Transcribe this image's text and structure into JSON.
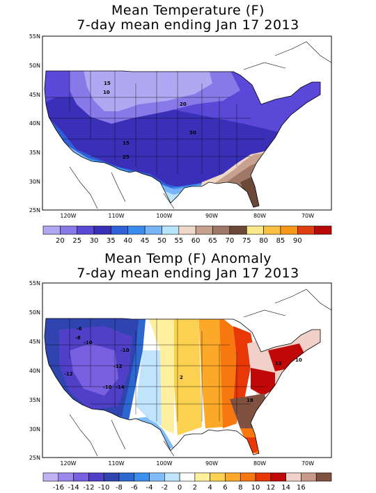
{
  "panels": [
    {
      "title_line1": "Mean Temperature (F)",
      "title_line2": "7-day mean ending Jan 17 2013",
      "lat_labels": [
        "55N",
        "50N",
        "45N",
        "40N",
        "35N",
        "30N",
        "25N"
      ],
      "lon_labels": [
        "120W",
        "110W",
        "100W",
        "90W",
        "80W",
        "70W"
      ],
      "contour_labels": [
        "15",
        "10",
        "20",
        "30",
        "15",
        "25"
      ],
      "colorbar": {
        "labels": [
          "20",
          "25",
          "30",
          "35",
          "40",
          "45",
          "50",
          "55",
          "60",
          "65",
          "70",
          "75",
          "80",
          "85",
          "90"
        ],
        "colors": [
          "#b0a8f0",
          "#8878e8",
          "#5a48d8",
          "#3a30b8",
          "#3060d8",
          "#3c8cf0",
          "#78b4f8",
          "#b8e4fc",
          "#f0d8c8",
          "#c8a090",
          "#a07868",
          "#6c4838",
          "#fae88c",
          "#f8c040",
          "#f89818",
          "#e04010",
          "#b80808"
        ]
      }
    },
    {
      "title_line1": "Mean Temp (F) Anomaly",
      "title_line2": "7-day mean ending Jan 17 2013",
      "lat_labels": [
        "55N",
        "50N",
        "45N",
        "40N",
        "35N",
        "30N",
        "25N"
      ],
      "lon_labels": [
        "120W",
        "110W",
        "100W",
        "90W",
        "80W",
        "70W"
      ],
      "contour_labels": [
        "-6",
        "-8",
        "-10",
        "-10",
        "-12",
        "-12",
        "-10",
        "-14",
        "2",
        "12",
        "10",
        "18"
      ],
      "colorbar": {
        "labels": [
          "-16",
          "-14",
          "-12",
          "-10",
          "-8",
          "-6",
          "-4",
          "-2",
          "0",
          "2",
          "4",
          "6",
          "8",
          "10",
          "12",
          "14",
          "16"
        ],
        "colors": [
          "#c0b0f4",
          "#9c88ec",
          "#7860e0",
          "#5040c8",
          "#3044b0",
          "#2c68d0",
          "#3c90ec",
          "#80bcf8",
          "#c0e4fc",
          "#ffffff",
          "#fff0a0",
          "#fcd050",
          "#fca828",
          "#f87810",
          "#e83808",
          "#c00808",
          "#f0d0c8",
          "#c89888",
          "#805040"
        ]
      }
    }
  ]
}
